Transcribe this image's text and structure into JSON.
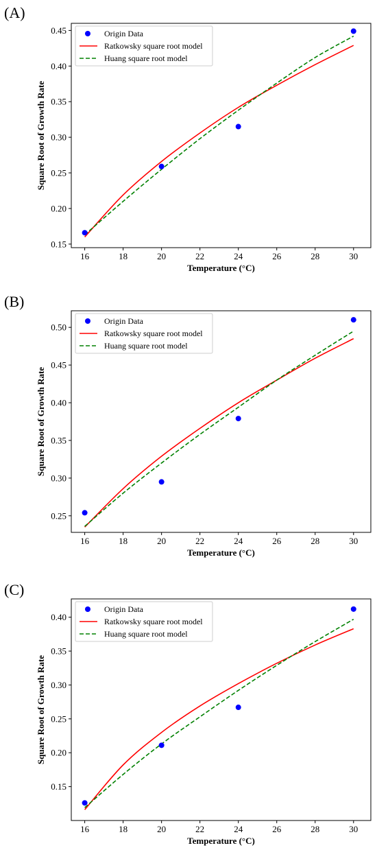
{
  "colors": {
    "origin": "#0000ff",
    "ratkowsky": "#ff0000",
    "huang": "#008000"
  },
  "legend_labels": [
    "Origin Data",
    "Ratkowsky square root model",
    "Huang square root model"
  ],
  "chart_data": [
    {
      "panel": "(A)",
      "type": "line",
      "xlabel": "Temperature (°C)",
      "ylabel": "Square Root of Growth Rate",
      "xlim": [
        15.3,
        30.9
      ],
      "ylim": [
        0.145,
        0.46
      ],
      "xticks": [
        16,
        18,
        20,
        22,
        24,
        26,
        28,
        30
      ],
      "yticks": [
        0.15,
        0.2,
        0.25,
        0.3,
        0.35,
        0.4,
        0.45
      ],
      "legend": "top-left",
      "grid": false,
      "origin_data": {
        "x": [
          16,
          20,
          24,
          30
        ],
        "y": [
          0.166,
          0.259,
          0.315,
          0.449
        ]
      },
      "ratkowsky": {
        "x": [
          16,
          18,
          20,
          22,
          24,
          26,
          28,
          30
        ],
        "y": [
          0.16,
          0.219,
          0.266,
          0.306,
          0.342,
          0.373,
          0.402,
          0.429
        ]
      },
      "huang": {
        "x": [
          16,
          18,
          20,
          22,
          24,
          26,
          28,
          30
        ],
        "y": [
          0.163,
          0.21,
          0.255,
          0.298,
          0.338,
          0.376,
          0.412,
          0.442
        ]
      }
    },
    {
      "panel": "(B)",
      "type": "line",
      "xlabel": "Temperature (°C)",
      "ylabel": "Square Root of Growth Rate",
      "xlim": [
        15.3,
        30.9
      ],
      "ylim": [
        0.228,
        0.522
      ],
      "xticks": [
        16,
        18,
        20,
        22,
        24,
        26,
        28,
        30
      ],
      "yticks": [
        0.25,
        0.3,
        0.35,
        0.4,
        0.45,
        0.5
      ],
      "legend": "top-left",
      "grid": false,
      "origin_data": {
        "x": [
          16,
          20,
          24,
          30
        ],
        "y": [
          0.254,
          0.295,
          0.379,
          0.51
        ]
      },
      "ratkowsky": {
        "x": [
          16,
          18,
          20,
          22,
          24,
          26,
          28,
          30
        ],
        "y": [
          0.235,
          0.286,
          0.329,
          0.366,
          0.4,
          0.43,
          0.459,
          0.485
        ]
      },
      "huang": {
        "x": [
          16,
          18,
          20,
          22,
          24,
          26,
          28,
          30
        ],
        "y": [
          0.236,
          0.28,
          0.32,
          0.358,
          0.394,
          0.43,
          0.463,
          0.495
        ]
      }
    },
    {
      "panel": "(C)",
      "type": "line",
      "xlabel": "Temperature (°C)",
      "ylabel": "Square Root of Growth Rate",
      "xlim": [
        15.3,
        30.9
      ],
      "ylim": [
        0.1,
        0.427
      ],
      "xticks": [
        16,
        18,
        20,
        22,
        24,
        26,
        28,
        30
      ],
      "yticks": [
        0.15,
        0.2,
        0.25,
        0.3,
        0.35,
        0.4
      ],
      "legend": "top-left",
      "grid": false,
      "origin_data": {
        "x": [
          16,
          20,
          24,
          30
        ],
        "y": [
          0.126,
          0.211,
          0.267,
          0.412
        ]
      },
      "ratkowsky": {
        "x": [
          16,
          18,
          20,
          22,
          24,
          26,
          28,
          30
        ],
        "y": [
          0.116,
          0.182,
          0.23,
          0.269,
          0.302,
          0.332,
          0.359,
          0.383
        ]
      },
      "huang": {
        "x": [
          16,
          18,
          20,
          22,
          24,
          26,
          28,
          30
        ],
        "y": [
          0.119,
          0.168,
          0.213,
          0.253,
          0.292,
          0.329,
          0.364,
          0.397
        ]
      }
    }
  ]
}
